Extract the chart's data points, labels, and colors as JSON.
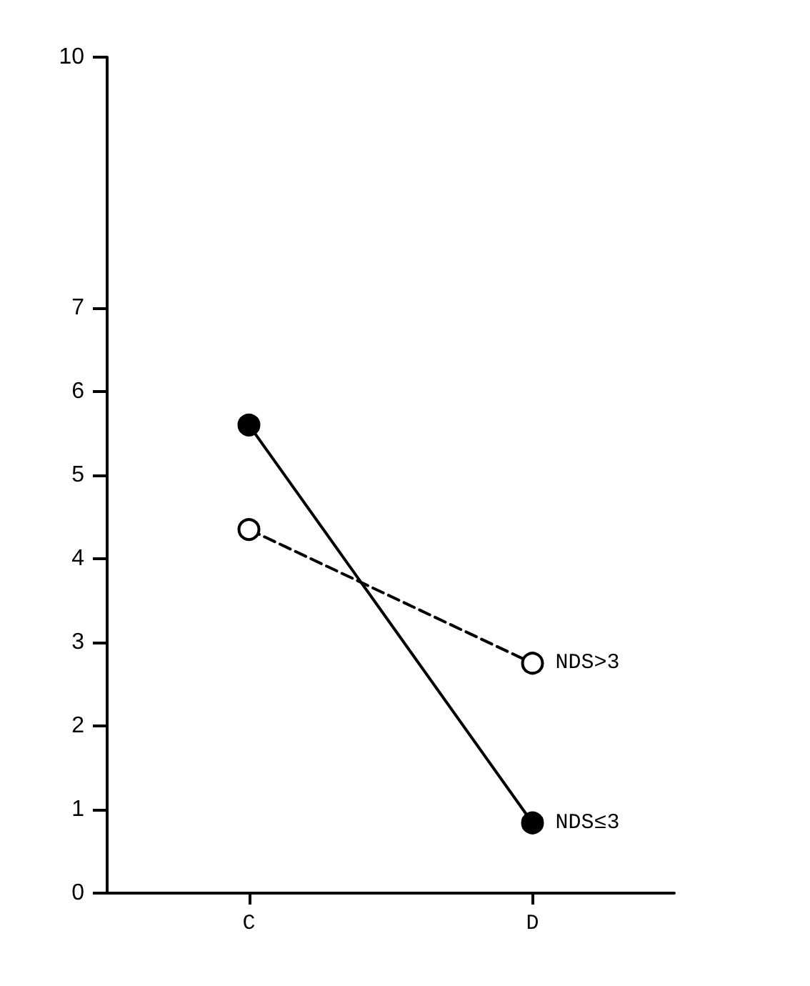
{
  "chart_data": {
    "type": "line",
    "categories": [
      "C",
      "D"
    ],
    "series": [
      {
        "name": "NDS≤3",
        "color": "#000000",
        "values": [
          5.6,
          0.84
        ],
        "line_style": "solid",
        "marker": "circle"
      },
      {
        "name": "NDS>3",
        "color": "#000000",
        "values": [
          4.35,
          2.75
        ],
        "line_style": "dashed",
        "marker": "circle"
      }
    ],
    "ylim": [
      0,
      10
    ],
    "yticks": [
      0,
      1,
      2,
      3,
      4,
      5,
      6,
      7,
      10
    ],
    "grid": false,
    "legend": false
  }
}
